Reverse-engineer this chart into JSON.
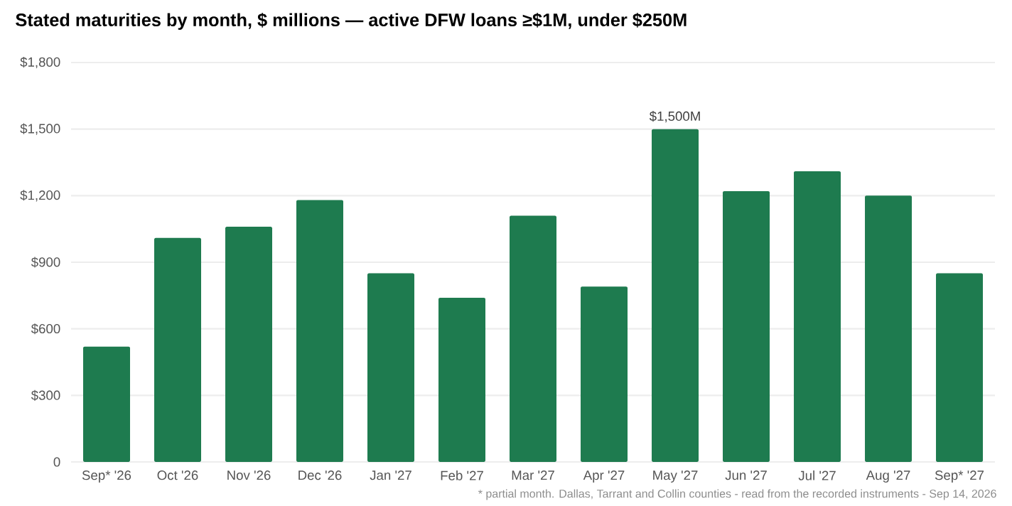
{
  "chart_data": {
    "type": "bar",
    "title": "Stated maturities by month, $ millions — active DFW loans ≥$1M, under $250M",
    "categories": [
      "Sep* '26",
      "Oct '26",
      "Nov '26",
      "Dec '26",
      "Jan '27",
      "Feb '27",
      "Mar '27",
      "Apr '27",
      "May '27",
      "Jun '27",
      "Jul '27",
      "Aug '27",
      "Sep* '27"
    ],
    "values": [
      520,
      1010,
      1060,
      1180,
      850,
      740,
      1110,
      790,
      1500,
      1220,
      1310,
      1200,
      850
    ],
    "value_labels": [
      null,
      null,
      null,
      null,
      null,
      null,
      null,
      null,
      "$1,500M",
      null,
      null,
      null,
      null
    ],
    "color": "#1e7b4f",
    "ylim": [
      0,
      1800
    ],
    "yticks": [
      0,
      {
        "value": 300,
        "label": "$300"
      },
      {
        "value": 600,
        "label": "$600"
      },
      {
        "value": 900,
        "label": "$900"
      },
      {
        "value": 1200,
        "label": "$1,200"
      },
      {
        "value": 1500,
        "label": "$1,500"
      },
      {
        "value": 1800,
        "label": "$1,800"
      }
    ],
    "grid": "y",
    "annotations": [
      "* partial month. Dallas, Tarrant and Collin counties - read from the recorded instruments - Sep 14, 2026"
    ]
  }
}
